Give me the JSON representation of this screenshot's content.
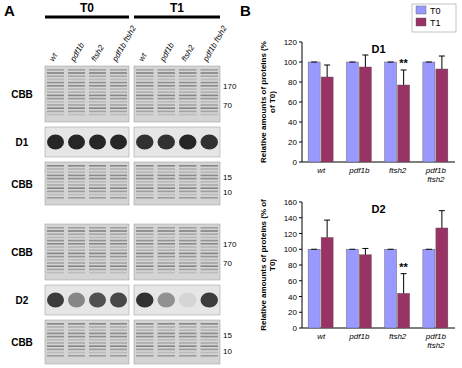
{
  "panel_a": {
    "letter": "A",
    "timepoints": [
      "T0",
      "T1"
    ],
    "lanes": [
      "wt",
      "pdf1b",
      "ftsh2",
      "pdf1b ftsh2"
    ],
    "blots": [
      {
        "rows": [
          {
            "label": "CBB",
            "markers": [
              170,
              70
            ]
          },
          {
            "label": "D1"
          },
          {
            "label": "CBB",
            "markers": [
              15,
              10
            ]
          }
        ]
      },
      {
        "rows": [
          {
            "label": "CBB",
            "markers": [
              170,
              70
            ]
          },
          {
            "label": "D2"
          },
          {
            "label": "CBB",
            "markers": [
              15,
              10
            ]
          }
        ]
      }
    ]
  },
  "panel_b": {
    "letter": "B"
  },
  "chart_data": [
    {
      "type": "bar",
      "title": "D1",
      "y_label": "Relative amounts of proteins (% of T0)",
      "categories": [
        "wt",
        "pdf1b",
        "ftsh2",
        "pdf1b ftsh2"
      ],
      "series": [
        {
          "name": "T0",
          "color": "#9999ff",
          "values": [
            100,
            100,
            100,
            100
          ],
          "errors": [
            0,
            0,
            0,
            0
          ]
        },
        {
          "name": "T1",
          "color": "#993366",
          "values": [
            85,
            95,
            77,
            93
          ],
          "errors": [
            12,
            12,
            15,
            13
          ]
        }
      ],
      "annotations": [
        {
          "text": "**",
          "category": "ftsh2",
          "series": "T1"
        }
      ],
      "ylim": [
        0,
        120
      ],
      "yticks": [
        0,
        20,
        40,
        60,
        80,
        100,
        120
      ],
      "legend": "top-right"
    },
    {
      "type": "bar",
      "title": "D2",
      "y_label": "Relative amounts of proteins (% of T0)",
      "categories": [
        "wt",
        "pdf1b",
        "ftsh2",
        "pdf1b ftsh2"
      ],
      "series": [
        {
          "name": "T0",
          "color": "#9999ff",
          "values": [
            100,
            100,
            100,
            100
          ],
          "errors": [
            0,
            0,
            0,
            0
          ]
        },
        {
          "name": "T1",
          "color": "#993366",
          "values": [
            115,
            93,
            44,
            127
          ],
          "errors": [
            22,
            8,
            25,
            22
          ]
        }
      ],
      "annotations": [
        {
          "text": "**",
          "category": "ftsh2",
          "series": "T1"
        }
      ],
      "ylim": [
        0,
        160
      ],
      "yticks": [
        0,
        20,
        40,
        60,
        80,
        100,
        120,
        140,
        160
      ]
    }
  ]
}
